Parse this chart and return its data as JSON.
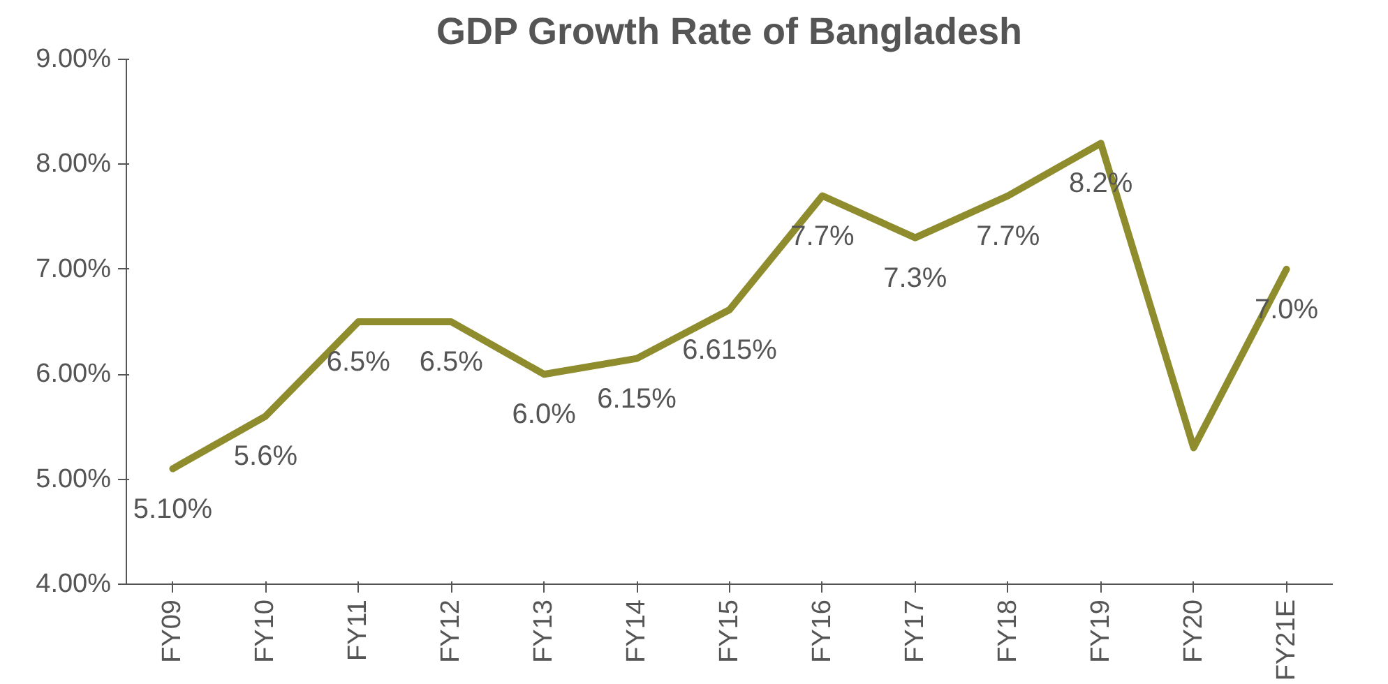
{
  "chart_data": {
    "type": "line",
    "title": "GDP Growth Rate of Bangladesh",
    "categories": [
      "FY09",
      "FY10",
      "FY11",
      "FY12",
      "FY13",
      "FY14",
      "FY15",
      "FY16",
      "FY17",
      "FY18",
      "FY19",
      "FY20",
      "FY21E"
    ],
    "series": [
      {
        "color": "#8e8c2c",
        "values": [
          5.1,
          5.6,
          6.5,
          6.5,
          6.0,
          6.15,
          6.615,
          7.7,
          7.3,
          7.7,
          8.2,
          5.3,
          7.0
        ],
        "value_labels": [
          "5.10%",
          "5.6%",
          "6.5%",
          "6.5%",
          "6.0%",
          "6.15%",
          "6.615%",
          "7.7%",
          "7.3%",
          "7.7%",
          "8.2%",
          null,
          "7.0%"
        ]
      }
    ],
    "ylim": [
      4,
      9
    ],
    "yticks": [
      {
        "value": 4,
        "label": "4.00%"
      },
      {
        "value": 5,
        "label": "5.00%"
      },
      {
        "value": 6,
        "label": "6.00%"
      },
      {
        "value": 7,
        "label": "7.00%"
      },
      {
        "value": 8,
        "label": "8.00%"
      },
      {
        "value": 9,
        "label": "9.00%"
      }
    ],
    "grid": false,
    "marker": "none",
    "line_style": "solid"
  }
}
